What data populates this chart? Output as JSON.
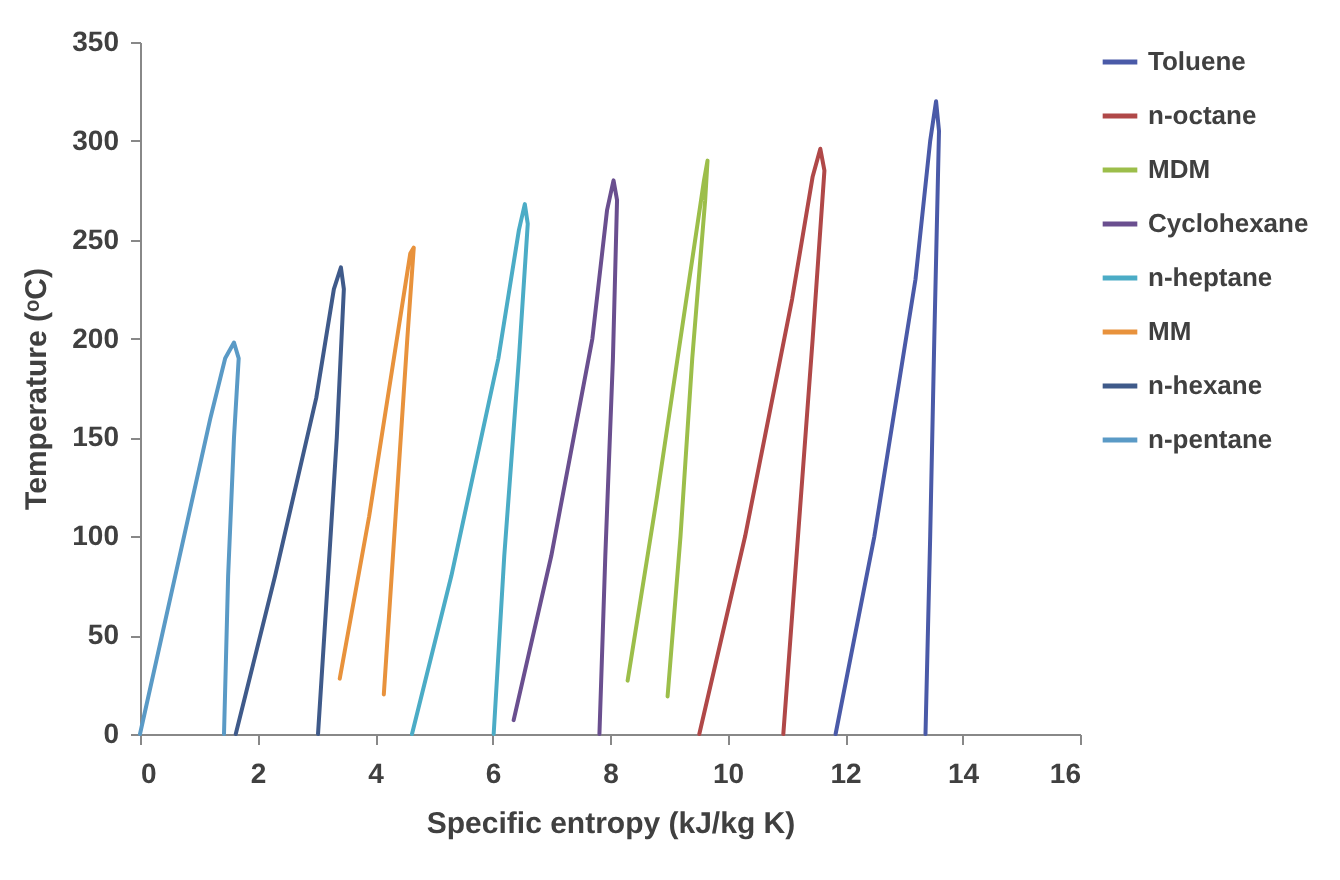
{
  "chart_data": {
    "type": "line",
    "xlabel": "Specific entropy (kJ/kg K)",
    "ylabel": "Temperature (ᵒC)",
    "xlim": [
      0,
      16
    ],
    "xticks": [
      0,
      2,
      4,
      6,
      8,
      10,
      12,
      14,
      16
    ],
    "ylim": [
      0,
      350
    ],
    "yticks": [
      0,
      50,
      100,
      150,
      200,
      250,
      300,
      350
    ],
    "legend": "right",
    "marker": "none",
    "series": [
      {
        "name": "Toluene",
        "color": "#4a5aa8",
        "x": [
          11.84,
          12.5,
          13.2,
          13.45,
          13.55,
          13.6,
          13.52,
          13.45,
          13.37
        ],
        "values": [
          0,
          100,
          230,
          300,
          320,
          305,
          200,
          100,
          0
        ]
      },
      {
        "name": "n-octane",
        "color": "#b04848",
        "x": [
          9.52,
          10.3,
          11.1,
          11.45,
          11.58,
          11.65,
          11.45,
          11.2,
          10.95
        ],
        "values": [
          0,
          100,
          220,
          282,
          296,
          285,
          200,
          100,
          0
        ]
      },
      {
        "name": "MDM",
        "color": "#9cbe4a",
        "x": [
          8.3,
          8.8,
          9.35,
          9.6,
          9.66,
          9.62,
          9.4,
          9.2,
          8.98
        ],
        "values": [
          27,
          120,
          230,
          280,
          290,
          270,
          190,
          100,
          19
        ]
      },
      {
        "name": "Cyclohexane",
        "color": "#6a4f8f",
        "x": [
          6.36,
          7.0,
          7.7,
          7.95,
          8.06,
          8.12,
          8.05,
          7.92,
          7.82
        ],
        "values": [
          7,
          90,
          200,
          265,
          280,
          270,
          190,
          90,
          0
        ]
      },
      {
        "name": "n-heptane",
        "color": "#4bacc6",
        "x": [
          4.63,
          5.3,
          6.1,
          6.45,
          6.55,
          6.6,
          6.45,
          6.2,
          6.02
        ],
        "values": [
          0,
          80,
          190,
          255,
          268,
          258,
          190,
          90,
          0
        ]
      },
      {
        "name": "MM",
        "color": "#e8923c",
        "x": [
          3.4,
          3.9,
          4.4,
          4.6,
          4.66,
          4.55,
          4.35,
          4.15
        ],
        "values": [
          28,
          110,
          205,
          243,
          246,
          200,
          110,
          20
        ]
      },
      {
        "name": "n-hexane",
        "color": "#3f5a8a",
        "x": [
          1.63,
          2.3,
          3.0,
          3.3,
          3.42,
          3.47,
          3.35,
          3.18,
          3.03
        ],
        "values": [
          0,
          80,
          170,
          225,
          236,
          225,
          150,
          70,
          0
        ]
      },
      {
        "name": "n-pentane",
        "color": "#5a9ac6",
        "x": [
          0,
          0.6,
          1.2,
          1.45,
          1.6,
          1.68,
          1.6,
          1.5,
          1.43
        ],
        "values": [
          0,
          80,
          160,
          190,
          198,
          190,
          150,
          80,
          0
        ]
      }
    ]
  }
}
